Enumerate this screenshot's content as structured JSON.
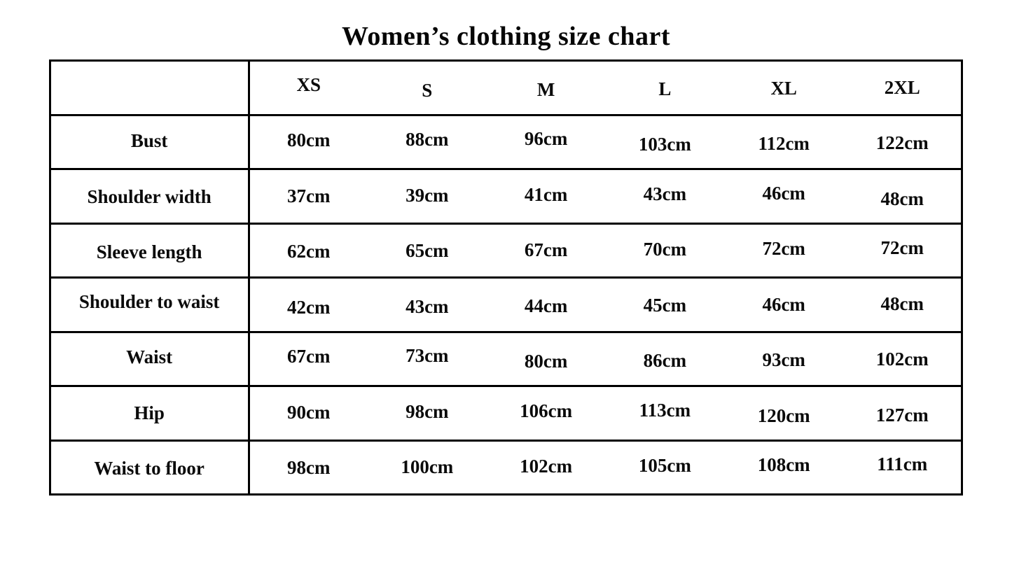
{
  "page": {
    "title": "Women’s clothing size chart",
    "background_color": "#ffffff",
    "text_color": "#0b0b0b",
    "border_color": "#000000"
  },
  "size_chart": {
    "columns": [
      "XS",
      "S",
      "M",
      "L",
      "XL",
      "2XL"
    ],
    "rows": [
      {
        "label": "Bust",
        "values": [
          "80cm",
          "88cm",
          "96cm",
          "103cm",
          "112cm",
          "122cm"
        ]
      },
      {
        "label": "Shoulder width",
        "values": [
          "37cm",
          "39cm",
          "41cm",
          "43cm",
          "46cm",
          "48cm"
        ]
      },
      {
        "label": "Sleeve length",
        "values": [
          "62cm",
          "65cm",
          "67cm",
          "70cm",
          "72cm",
          "72cm"
        ]
      },
      {
        "label": "Shoulder to waist",
        "values": [
          "42cm",
          "43cm",
          "44cm",
          "45cm",
          "46cm",
          "48cm"
        ]
      },
      {
        "label": "Waist",
        "values": [
          "67cm",
          "73cm",
          "80cm",
          "86cm",
          "93cm",
          "102cm"
        ]
      },
      {
        "label": "Hip",
        "values": [
          "90cm",
          "98cm",
          "106cm",
          "113cm",
          "120cm",
          "127cm"
        ]
      },
      {
        "label": "Waist to floor",
        "values": [
          "98cm",
          "100cm",
          "102cm",
          "105cm",
          "108cm",
          "111cm"
        ]
      }
    ],
    "unit": "cm"
  }
}
